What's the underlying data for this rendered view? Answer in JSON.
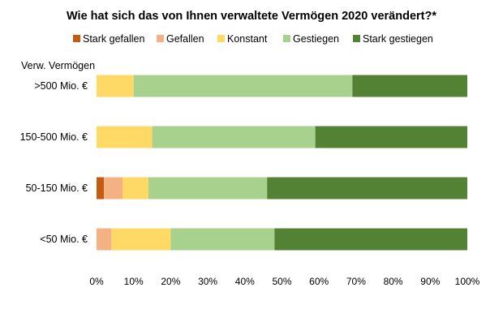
{
  "chart_data": {
    "type": "bar",
    "orientation": "horizontal",
    "stacked": "percent",
    "title": "Wie hat sich das von Ihnen verwaltete Vermögen 2020 verändert?*",
    "ylabel": "Verw. Vermögen",
    "xlabel": "",
    "xlim": [
      0,
      100
    ],
    "xticks": [
      "0%",
      "10%",
      "20%",
      "30%",
      "40%",
      "50%",
      "60%",
      "70%",
      "80%",
      "90%",
      "100%"
    ],
    "grid": false,
    "legend_position": "top",
    "categories": [
      ">500 Mio. €",
      "150-500 Mio. €",
      "50-150 Mio. €",
      "<50 Mio. €"
    ],
    "series": [
      {
        "name": "Stark gefallen",
        "color": "#c55a11",
        "values": [
          0,
          0,
          2,
          0
        ]
      },
      {
        "name": "Gefallen",
        "color": "#f4b183",
        "values": [
          0,
          0,
          5,
          4
        ]
      },
      {
        "name": "Konstant",
        "color": "#ffd966",
        "values": [
          10,
          15,
          7,
          16
        ]
      },
      {
        "name": "Gestiegen",
        "color": "#a9d18e",
        "values": [
          59,
          44,
          32,
          28
        ]
      },
      {
        "name": "Stark gestiegen",
        "color": "#548235",
        "values": [
          31,
          41,
          54,
          52
        ]
      }
    ]
  }
}
